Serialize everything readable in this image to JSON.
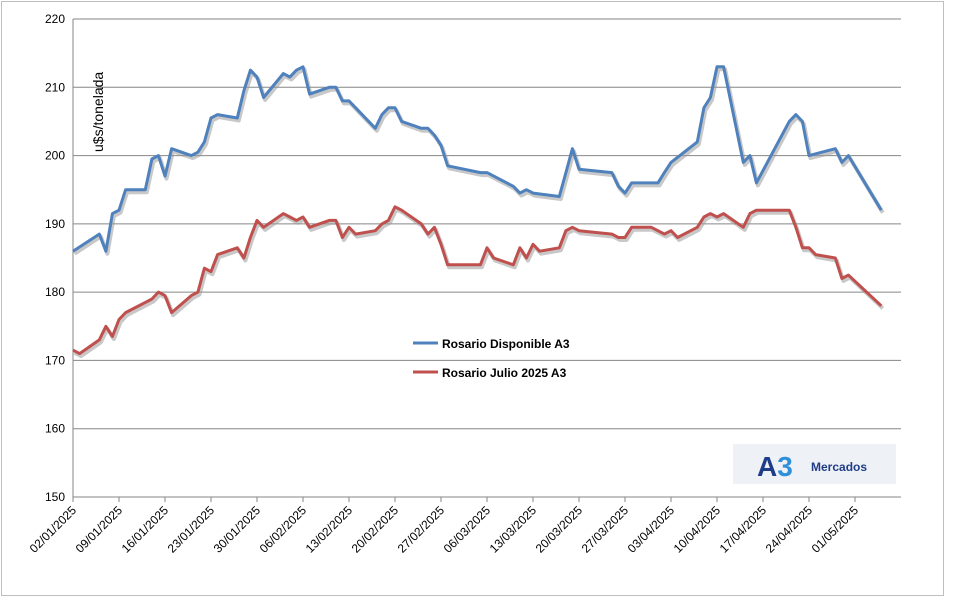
{
  "chart_data": {
    "type": "line",
    "ylabel": "u$s/tonelada",
    "xlabel": "",
    "title": "",
    "ylim": [
      150,
      220
    ],
    "yticks": [
      150,
      160,
      170,
      180,
      190,
      200,
      210,
      220
    ],
    "grid": "horizontal",
    "legend_position": "center",
    "xlim": [
      "2025-01-02",
      "2025-05-08"
    ],
    "x_tick_labels": [
      "02/01/2025",
      "09/01/2025",
      "16/01/2025",
      "23/01/2025",
      "30/01/2025",
      "06/02/2025",
      "13/02/2025",
      "20/02/2025",
      "27/02/2025",
      "06/03/2025",
      "13/03/2025",
      "20/03/2025",
      "27/03/2025",
      "03/04/2025",
      "10/04/2025",
      "17/04/2025",
      "24/04/2025",
      "01/05/2025"
    ],
    "x_tick_dates": [
      "2025-01-02",
      "2025-01-09",
      "2025-01-16",
      "2025-01-23",
      "2025-01-30",
      "2025-02-06",
      "2025-02-13",
      "2025-02-20",
      "2025-02-27",
      "2025-03-06",
      "2025-03-13",
      "2025-03-20",
      "2025-03-27",
      "2025-04-03",
      "2025-04-10",
      "2025-04-17",
      "2025-04-24",
      "2025-05-01"
    ],
    "series": [
      {
        "name": "Rosario Disponible A3",
        "color": "#4f81bd",
        "points": [
          [
            "2025-01-02",
            186
          ],
          [
            "2025-01-06",
            188.5
          ],
          [
            "2025-01-07",
            186
          ],
          [
            "2025-01-08",
            191.5
          ],
          [
            "2025-01-09",
            192
          ],
          [
            "2025-01-10",
            195
          ],
          [
            "2025-01-13",
            195
          ],
          [
            "2025-01-14",
            199.5
          ],
          [
            "2025-01-15",
            200
          ],
          [
            "2025-01-16",
            197
          ],
          [
            "2025-01-17",
            201
          ],
          [
            "2025-01-20",
            200
          ],
          [
            "2025-01-21",
            200.5
          ],
          [
            "2025-01-22",
            202
          ],
          [
            "2025-01-23",
            205.5
          ],
          [
            "2025-01-24",
            206
          ],
          [
            "2025-01-27",
            205.5
          ],
          [
            "2025-01-28",
            209.5
          ],
          [
            "2025-01-29",
            212.5
          ],
          [
            "2025-01-30",
            211.5
          ],
          [
            "2025-01-31",
            208.5
          ],
          [
            "2025-02-03",
            212
          ],
          [
            "2025-02-04",
            211.5
          ],
          [
            "2025-02-05",
            212.5
          ],
          [
            "2025-02-06",
            213
          ],
          [
            "2025-02-07",
            209
          ],
          [
            "2025-02-10",
            210
          ],
          [
            "2025-02-11",
            210
          ],
          [
            "2025-02-12",
            208
          ],
          [
            "2025-02-13",
            208
          ],
          [
            "2025-02-17",
            204
          ],
          [
            "2025-02-18",
            206
          ],
          [
            "2025-02-19",
            207
          ],
          [
            "2025-02-20",
            207
          ],
          [
            "2025-02-21",
            205
          ],
          [
            "2025-02-24",
            204
          ],
          [
            "2025-02-25",
            204
          ],
          [
            "2025-02-26",
            203
          ],
          [
            "2025-02-27",
            201.5
          ],
          [
            "2025-02-28",
            198.5
          ],
          [
            "2025-03-05",
            197.5
          ],
          [
            "2025-03-06",
            197.5
          ],
          [
            "2025-03-10",
            195.5
          ],
          [
            "2025-03-11",
            194.5
          ],
          [
            "2025-03-12",
            195
          ],
          [
            "2025-03-13",
            194.5
          ],
          [
            "2025-03-17",
            194
          ],
          [
            "2025-03-18",
            197.5
          ],
          [
            "2025-03-19",
            201
          ],
          [
            "2025-03-20",
            198
          ],
          [
            "2025-03-25",
            197.5
          ],
          [
            "2025-03-26",
            195.5
          ],
          [
            "2025-03-27",
            194.5
          ],
          [
            "2025-03-28",
            196
          ],
          [
            "2025-03-31",
            196
          ],
          [
            "2025-04-01",
            196
          ],
          [
            "2025-04-02",
            197.5
          ],
          [
            "2025-04-03",
            199
          ],
          [
            "2025-04-07",
            202
          ],
          [
            "2025-04-08",
            207
          ],
          [
            "2025-04-09",
            208.5
          ],
          [
            "2025-04-10",
            213
          ],
          [
            "2025-04-11",
            213
          ],
          [
            "2025-04-14",
            199
          ],
          [
            "2025-04-15",
            200
          ],
          [
            "2025-04-16",
            196
          ],
          [
            "2025-04-21",
            205
          ],
          [
            "2025-04-22",
            206
          ],
          [
            "2025-04-23",
            205
          ],
          [
            "2025-04-24",
            200
          ],
          [
            "2025-04-28",
            201
          ],
          [
            "2025-04-29",
            199
          ],
          [
            "2025-04-30",
            200
          ],
          [
            "2025-05-05",
            192
          ]
        ]
      },
      {
        "name": "Rosario Julio 2025 A3",
        "color": "#c0504d",
        "points": [
          [
            "2025-01-02",
            171.5
          ],
          [
            "2025-01-03",
            171
          ],
          [
            "2025-01-06",
            173
          ],
          [
            "2025-01-07",
            175
          ],
          [
            "2025-01-08",
            173.5
          ],
          [
            "2025-01-09",
            176
          ],
          [
            "2025-01-10",
            177
          ],
          [
            "2025-01-13",
            178.5
          ],
          [
            "2025-01-14",
            179
          ],
          [
            "2025-01-15",
            180
          ],
          [
            "2025-01-16",
            179.5
          ],
          [
            "2025-01-17",
            177
          ],
          [
            "2025-01-20",
            179.5
          ],
          [
            "2025-01-21",
            180
          ],
          [
            "2025-01-22",
            183.5
          ],
          [
            "2025-01-23",
            183
          ],
          [
            "2025-01-24",
            185.5
          ],
          [
            "2025-01-27",
            186.5
          ],
          [
            "2025-01-28",
            185
          ],
          [
            "2025-01-29",
            188
          ],
          [
            "2025-01-30",
            190.5
          ],
          [
            "2025-01-31",
            189.5
          ],
          [
            "2025-02-03",
            191.5
          ],
          [
            "2025-02-04",
            191
          ],
          [
            "2025-02-05",
            190.5
          ],
          [
            "2025-02-06",
            191
          ],
          [
            "2025-02-07",
            189.5
          ],
          [
            "2025-02-10",
            190.5
          ],
          [
            "2025-02-11",
            190.5
          ],
          [
            "2025-02-12",
            188
          ],
          [
            "2025-02-13",
            189.5
          ],
          [
            "2025-02-14",
            188.5
          ],
          [
            "2025-02-17",
            189
          ],
          [
            "2025-02-18",
            190
          ],
          [
            "2025-02-19",
            190.5
          ],
          [
            "2025-02-20",
            192.5
          ],
          [
            "2025-02-21",
            192
          ],
          [
            "2025-02-24",
            190
          ],
          [
            "2025-02-25",
            188.5
          ],
          [
            "2025-02-26",
            189.5
          ],
          [
            "2025-02-27",
            187
          ],
          [
            "2025-02-28",
            184
          ],
          [
            "2025-03-05",
            184
          ],
          [
            "2025-03-06",
            186.5
          ],
          [
            "2025-03-07",
            185
          ],
          [
            "2025-03-10",
            184
          ],
          [
            "2025-03-11",
            186.5
          ],
          [
            "2025-03-12",
            185
          ],
          [
            "2025-03-13",
            187
          ],
          [
            "2025-03-14",
            186
          ],
          [
            "2025-03-17",
            186.5
          ],
          [
            "2025-03-18",
            189
          ],
          [
            "2025-03-19",
            189.5
          ],
          [
            "2025-03-20",
            189
          ],
          [
            "2025-03-25",
            188.5
          ],
          [
            "2025-03-26",
            188
          ],
          [
            "2025-03-27",
            188
          ],
          [
            "2025-03-28",
            189.5
          ],
          [
            "2025-03-31",
            189.5
          ],
          [
            "2025-04-01",
            189
          ],
          [
            "2025-04-02",
            188.5
          ],
          [
            "2025-04-03",
            189
          ],
          [
            "2025-04-04",
            188
          ],
          [
            "2025-04-07",
            189.5
          ],
          [
            "2025-04-08",
            191
          ],
          [
            "2025-04-09",
            191.5
          ],
          [
            "2025-04-10",
            191
          ],
          [
            "2025-04-11",
            191.5
          ],
          [
            "2025-04-14",
            189.5
          ],
          [
            "2025-04-15",
            191.5
          ],
          [
            "2025-04-16",
            192
          ],
          [
            "2025-04-21",
            192
          ],
          [
            "2025-04-22",
            189.5
          ],
          [
            "2025-04-23",
            186.5
          ],
          [
            "2025-04-24",
            186.5
          ],
          [
            "2025-04-25",
            185.5
          ],
          [
            "2025-04-28",
            185
          ],
          [
            "2025-04-29",
            182
          ],
          [
            "2025-04-30",
            182.5
          ],
          [
            "2025-05-05",
            178
          ]
        ]
      }
    ]
  },
  "logo": {
    "mark": "A3",
    "text": "Mercados",
    "mark_color": "#1f3c88",
    "accent_color": "#2f8fd8",
    "bg_color": "#eef1f6"
  }
}
